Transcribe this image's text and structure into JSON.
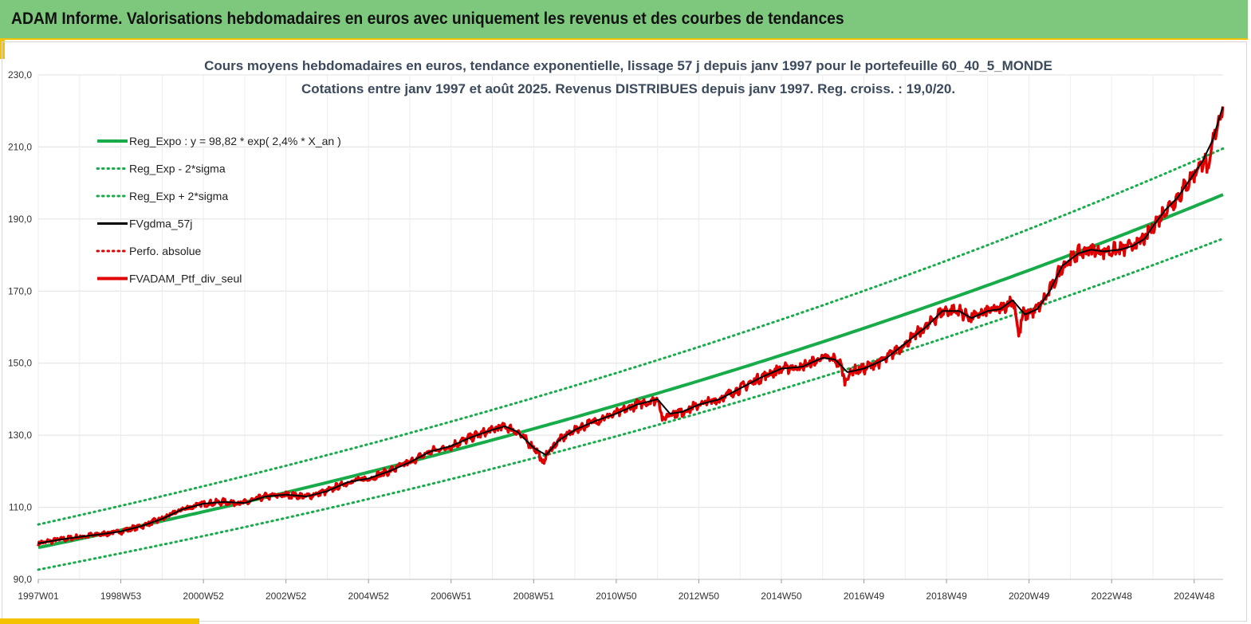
{
  "header": {
    "title": "ADAM Informe. Valorisations hebdomadaires en euros avec uniquement les revenus et des courbes de tendances"
  },
  "chart_data": {
    "type": "line",
    "title_line1": "Cours moyens hebdomadaires  en euros, tendance exponentielle, lissage 57 j depuis janv 1997 pour le portefeuille 60_40_5_MONDE",
    "title_line2": "Cotations  entre janv 1997 et août 2025. Revenus DISTRIBUES depuis janv 1997. Reg. croiss. : 19,0/20.",
    "xlabel": "",
    "ylabel": "",
    "xlim": [
      1997.0,
      2025.7
    ],
    "ylim": [
      90,
      230
    ],
    "y_ticks": [
      "90,0",
      "110,0",
      "130,0",
      "150,0",
      "170,0",
      "190,0",
      "210,0",
      "230,0"
    ],
    "x_ticks": [
      {
        "label": "1997W01",
        "x": 1997.0
      },
      {
        "label": "1998W53",
        "x": 1999.0
      },
      {
        "label": "2000W52",
        "x": 2001.0
      },
      {
        "label": "2002W52",
        "x": 2003.0
      },
      {
        "label": "2004W52",
        "x": 2005.0
      },
      {
        "label": "2006W51",
        "x": 2007.0
      },
      {
        "label": "2008W51",
        "x": 2009.0
      },
      {
        "label": "2010W50",
        "x": 2011.0
      },
      {
        "label": "2012W50",
        "x": 2013.0
      },
      {
        "label": "2014W50",
        "x": 2015.0
      },
      {
        "label": "2016W49",
        "x": 2017.0
      },
      {
        "label": "2018W49",
        "x": 2019.0
      },
      {
        "label": "2020W49",
        "x": 2021.0
      },
      {
        "label": "2022W48",
        "x": 2023.0
      },
      {
        "label": "2024W48",
        "x": 2025.0
      }
    ],
    "grid": true,
    "legend_position": "top-left",
    "trend": {
      "a": 98.82,
      "rate": 0.024,
      "band_minus": 0.938,
      "band_plus": 1.065
    },
    "series": [
      {
        "name": "Reg_Expo : y = 98,82 * exp( 2,4% *  X_an )",
        "color": "#17ab4a",
        "style": "solid-thick",
        "kind": "trend"
      },
      {
        "name": "Reg_Exp - 2*sigma",
        "color": "#17ab4a",
        "style": "dotted",
        "kind": "band_minus"
      },
      {
        "name": "Reg_Exp + 2*sigma",
        "color": "#17ab4a",
        "style": "dotted",
        "kind": "band_plus"
      },
      {
        "name": "FVgdma_57j",
        "color": "#000000",
        "style": "solid",
        "kind": "smooth"
      },
      {
        "name": "Perfo. absolue",
        "color": "#e00000",
        "style": "dotted",
        "kind": "none"
      },
      {
        "name": "FVADAM_Ptf_div_seul",
        "color": "#e00000",
        "style": "solid-thick",
        "kind": "raw"
      }
    ],
    "price_points": [
      [
        1997.0,
        100.0
      ],
      [
        1997.5,
        101.0
      ],
      [
        1998.0,
        101.8
      ],
      [
        1998.5,
        102.5
      ],
      [
        1999.0,
        103.3
      ],
      [
        1999.5,
        104.8
      ],
      [
        2000.0,
        106.8
      ],
      [
        2000.5,
        109.5
      ],
      [
        2001.0,
        111.0
      ],
      [
        2001.5,
        111.5
      ],
      [
        2002.0,
        111.2
      ],
      [
        2002.5,
        113.0
      ],
      [
        2003.0,
        113.5
      ],
      [
        2003.5,
        113.0
      ],
      [
        2004.0,
        114.5
      ],
      [
        2004.5,
        117.0
      ],
      [
        2005.0,
        118.0
      ],
      [
        2005.5,
        120.0
      ],
      [
        2006.0,
        122.5
      ],
      [
        2006.5,
        125.5
      ],
      [
        2007.0,
        127.0
      ],
      [
        2007.5,
        129.5
      ],
      [
        2008.0,
        131.5
      ],
      [
        2008.3,
        132.5
      ],
      [
        2008.6,
        131.0
      ],
      [
        2009.0,
        126.5
      ],
      [
        2009.3,
        124.5
      ],
      [
        2009.6,
        128.5
      ],
      [
        2010.0,
        131.5
      ],
      [
        2010.5,
        134.0
      ],
      [
        2011.0,
        136.0
      ],
      [
        2011.5,
        138.5
      ],
      [
        2012.0,
        140.0
      ],
      [
        2012.3,
        136.0
      ],
      [
        2012.6,
        136.5
      ],
      [
        2013.0,
        138.5
      ],
      [
        2013.5,
        140.0
      ],
      [
        2014.0,
        143.0
      ],
      [
        2014.5,
        146.0
      ],
      [
        2015.0,
        148.5
      ],
      [
        2015.5,
        149.0
      ],
      [
        2016.0,
        151.5
      ],
      [
        2016.3,
        151.0
      ],
      [
        2016.6,
        147.5
      ],
      [
        2017.0,
        148.5
      ],
      [
        2017.5,
        151.0
      ],
      [
        2018.0,
        155.5
      ],
      [
        2018.5,
        160.0
      ],
      [
        2018.9,
        164.5
      ],
      [
        2019.3,
        164.5
      ],
      [
        2019.6,
        162.5
      ],
      [
        2020.0,
        164.5
      ],
      [
        2020.3,
        165.0
      ],
      [
        2020.6,
        167.5
      ],
      [
        2020.9,
        163.5
      ],
      [
        2021.2,
        165.0
      ],
      [
        2021.5,
        170.0
      ],
      [
        2021.8,
        177.0
      ],
      [
        2022.2,
        180.5
      ],
      [
        2022.5,
        181.5
      ],
      [
        2022.8,
        181.0
      ],
      [
        2023.2,
        181.5
      ],
      [
        2023.5,
        182.5
      ],
      [
        2023.8,
        184.5
      ],
      [
        2024.0,
        188.0
      ],
      [
        2024.3,
        192.5
      ],
      [
        2024.6,
        196.0
      ],
      [
        2024.9,
        201.0
      ],
      [
        2025.2,
        206.0
      ],
      [
        2025.45,
        212.0
      ],
      [
        2025.7,
        221.5
      ]
    ],
    "dips": [
      [
        2009.2,
        -3.0
      ],
      [
        2012.15,
        -4.5
      ],
      [
        2016.55,
        -3.0
      ],
      [
        2020.75,
        -7.5
      ],
      [
        2025.35,
        -6.5
      ]
    ]
  }
}
